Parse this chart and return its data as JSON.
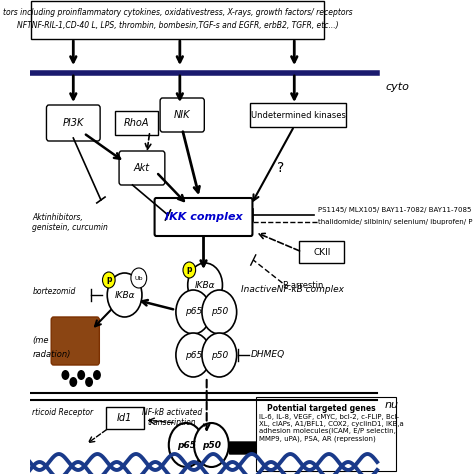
{
  "title_line1": "tors including proinflammatory cytokines, oxidativestress, X-rays, growth factors/ receptors",
  "title_line2": "NFTNF-RIL-1,CD-40 L, LPS, thrombin, bombesin,TGF-s and EGFR, erbB2, TGFR, etc...)",
  "cyto_label": "cyto",
  "nu_label": "nu",
  "bg_color": "#ffffff",
  "IKK_text_color": "#0000cc",
  "membrane_color": "#1a1a6e",
  "wave_color": "#1a3a8a",
  "inhibitor_text1": "PS1145/ MLX105/ BAY11-7082/ BAY11-7085",
  "inhibitor_text2": "thalidomide/ silbinin/ selenium/ ibuprofen/ P",
  "actinhibitors_text": "Aktinhibitors,\ngenistein, curcumin",
  "DHMEQ_text": "DHMEQ",
  "nfkb_text": "NF-kB activated\ntranscription",
  "potential_genes_title": "Potential targeted genes",
  "potential_genes_text": "IL-6, IL-8, VEGF, cMYC, bcl-2, c-FLIP, Bcl-\nXL, cIAPs, A1/BFL1, COX2, cyclinD1, IKB,a\nadhesion molecules(ICAM, E/P selectin,\nMMP9, uPA), PSA, AR (repression)"
}
